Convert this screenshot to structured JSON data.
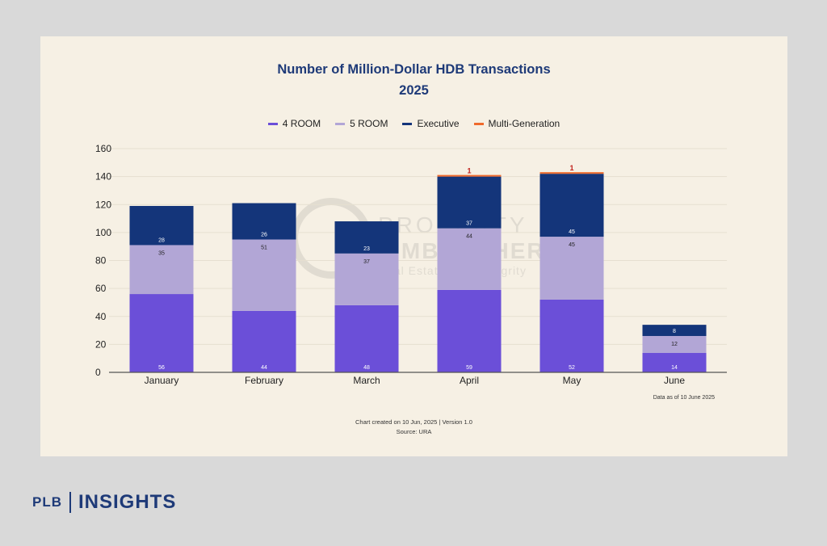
{
  "chart_data": {
    "type": "bar",
    "stacked": true,
    "title": "Number of Million-Dollar HDB Transactions",
    "subtitle": "2025",
    "categories": [
      "January",
      "February",
      "March",
      "April",
      "May",
      "June"
    ],
    "series": [
      {
        "name": "4 ROOM",
        "color": "#6b4fd8",
        "values": [
          56,
          44,
          48,
          59,
          52,
          14
        ]
      },
      {
        "name": "5 ROOM",
        "color": "#b2a6d6",
        "values": [
          35,
          51,
          37,
          44,
          45,
          12
        ]
      },
      {
        "name": "Executive",
        "color": "#14357a",
        "values": [
          28,
          26,
          23,
          37,
          45,
          8
        ]
      },
      {
        "name": "Multi-Generation",
        "color": "#ef6a2c",
        "values": [
          0,
          0,
          0,
          1,
          1,
          0
        ]
      }
    ],
    "ylim": [
      0,
      160
    ],
    "yticks": [
      0,
      20,
      40,
      60,
      80,
      100,
      120,
      140,
      160
    ],
    "grid": true,
    "legend_position": "top-center"
  },
  "notes": {
    "data_as_of": "Data as of 10 June 2025",
    "created": "Chart created on 10 Jun, 2025 | Version 1.0",
    "source": "Source: URA"
  },
  "watermark": {
    "line1": "PROPERTY",
    "line2": "LIMBROTHERS",
    "line3": "Real Estate With Integrity"
  },
  "brand": {
    "plb": "PLB",
    "insights": "INSIGHTS"
  }
}
